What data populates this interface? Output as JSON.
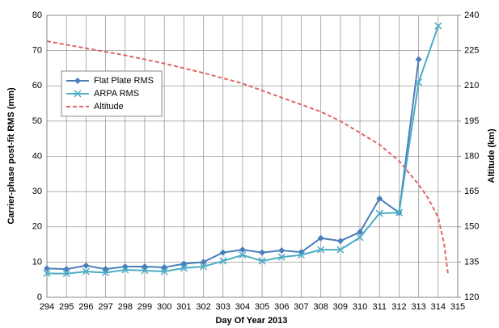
{
  "chart_data": {
    "type": "line",
    "x_label": "Day Of Year 2013",
    "y_label": "Carrier-phase post-fit RMS (mm)",
    "y2_label": "Altitude (km)",
    "x": [
      294,
      295,
      296,
      297,
      298,
      299,
      300,
      301,
      302,
      303,
      304,
      305,
      306,
      307,
      308,
      309,
      310,
      311,
      312,
      313,
      314
    ],
    "series": [
      {
        "name": "Flat Plate RMS",
        "color": "#4a7ebb",
        "marker": "diamond",
        "values": [
          8.2,
          8.0,
          9.0,
          8.0,
          8.7,
          8.7,
          8.5,
          9.5,
          10.0,
          12.7,
          13.5,
          12.7,
          13.3,
          12.8,
          16.8,
          16.0,
          18.5,
          28.0,
          24.0,
          67.5,
          null
        ]
      },
      {
        "name": "ARPA RMS",
        "color": "#4bacc6",
        "marker": "x",
        "values": [
          6.8,
          6.7,
          7.3,
          7.0,
          7.8,
          7.6,
          7.3,
          8.3,
          8.7,
          10.3,
          12.0,
          10.3,
          11.4,
          12.0,
          13.5,
          13.5,
          17.0,
          23.8,
          24.0,
          61.0,
          77.0
        ]
      },
      {
        "name": "Altitude",
        "color": "#e06666",
        "axis": "y2",
        "dashed": true,
        "x": [
          294,
          296,
          298,
          300,
          302,
          304,
          306,
          308,
          309,
          310,
          311,
          312,
          313,
          313.5,
          314,
          314.3,
          314.5
        ],
        "values": [
          229,
          226,
          223,
          219.5,
          215.5,
          211,
          205,
          199,
          195,
          190,
          185,
          178,
          168,
          162,
          154,
          143,
          130
        ]
      }
    ],
    "xlim": [
      294,
      315
    ],
    "xticks": [
      294,
      295,
      296,
      297,
      298,
      299,
      300,
      301,
      302,
      303,
      304,
      305,
      306,
      307,
      308,
      309,
      310,
      311,
      312,
      313,
      314,
      315
    ],
    "ylim": [
      0,
      80
    ],
    "yticks": [
      0,
      10,
      20,
      30,
      40,
      50,
      60,
      70,
      80
    ],
    "y2lim": [
      120,
      240
    ],
    "y2ticks": [
      120,
      135,
      150,
      165,
      180,
      195,
      210,
      225,
      240
    ],
    "grid": true,
    "legend": "upper left"
  }
}
